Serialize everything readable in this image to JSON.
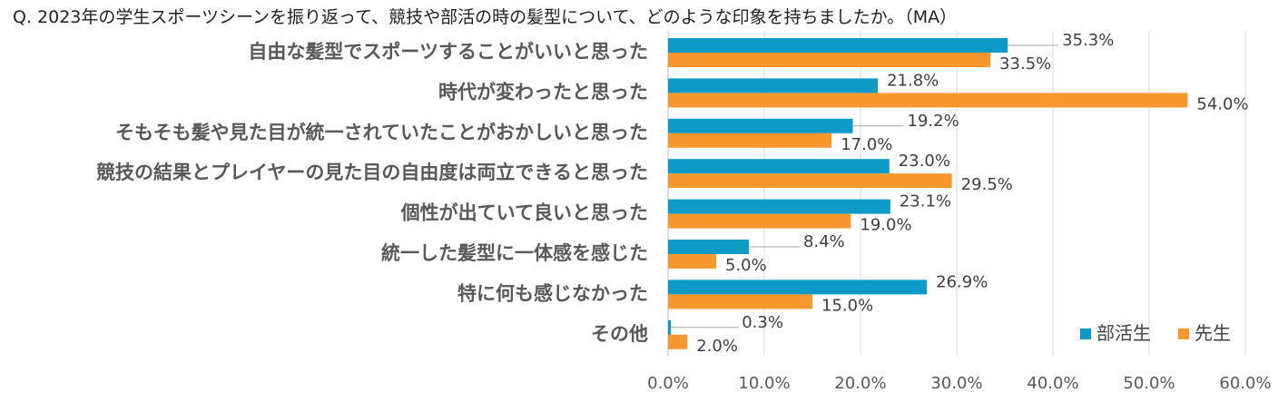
{
  "title": "Q. 2023年の学生スポーツシーンを振り返って、競技や部活の時の髪型について、どのような印象を持ちましたか。（MA）",
  "chart_data": {
    "type": "bar",
    "orientation": "horizontal",
    "categories": [
      "自由な髪型でスポーツすることがいいと思った",
      "時代が変わったと思った",
      "そもそも髪や見た目が統一されていたことがおかしいと思った",
      "競技の結果とプレイヤーの見た目の自由度は両立できると思った",
      "個性が出ていて良いと思った",
      "統一した髪型に一体感を感じた",
      "特に何も感じなかった",
      "その他"
    ],
    "series": [
      {
        "name": "部活生",
        "color": "#0e9ac7",
        "values": [
          35.3,
          21.8,
          19.2,
          23.0,
          23.1,
          8.4,
          26.9,
          0.3
        ],
        "labels": [
          "35.3%",
          "21.8%",
          "19.2%",
          "23.0%",
          "23.1%",
          "8.4%",
          "26.9%",
          "0.3%"
        ]
      },
      {
        "name": "先生",
        "color": "#f7982f",
        "values": [
          33.5,
          54.0,
          17.0,
          29.5,
          19.0,
          5.0,
          15.0,
          2.0
        ],
        "labels": [
          "33.5%",
          "54.0%",
          "17.0%",
          "29.5%",
          "19.0%",
          "5.0%",
          "15.0%",
          "2.0%"
        ]
      }
    ],
    "xlim": [
      0,
      60
    ],
    "xticks": [
      "0.0%",
      "10.0%",
      "20.0%",
      "30.0%",
      "40.0%",
      "50.0%",
      "60.0%"
    ],
    "grid": true,
    "legend_position": "bottom-right"
  }
}
